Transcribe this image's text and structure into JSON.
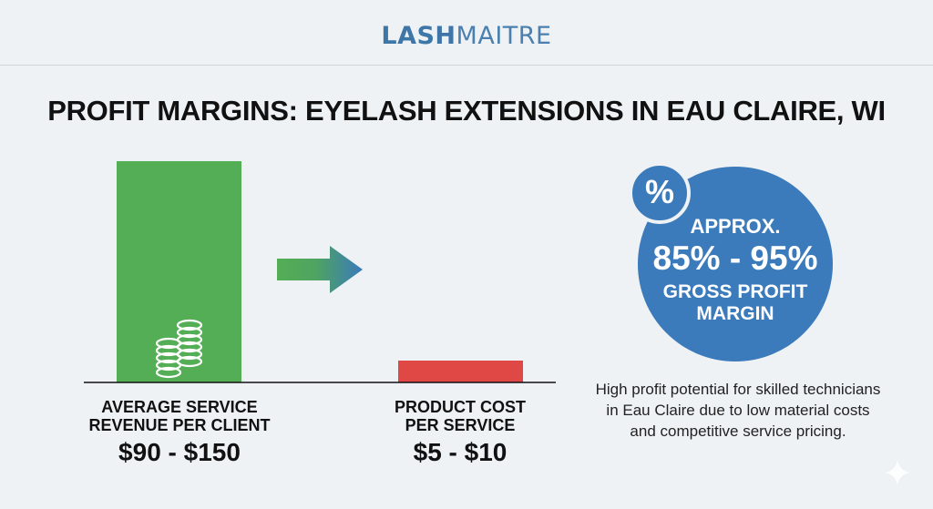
{
  "header": {
    "logo_bold": "LASH",
    "logo_light": "MAITRE"
  },
  "title": "PROFIT MARGINS: EYELASH EXTENSIONS IN EAU CLAIRE, WI",
  "chart_data": {
    "type": "bar",
    "title": "PROFIT MARGINS: EYELASH EXTENSIONS IN EAU CLAIRE, WI",
    "categories": [
      "AVERAGE SERVICE REVENUE PER CLIENT",
      "PRODUCT COST PER SERVICE"
    ],
    "category_lines": [
      [
        "AVERAGE SERVICE",
        "REVENUE PER CLIENT"
      ],
      [
        "PRODUCT COST",
        "PER SERVICE"
      ]
    ],
    "value_labels": [
      "$90 - $150",
      "$5 - $10"
    ],
    "ranges": [
      [
        90,
        150
      ],
      [
        5,
        10
      ]
    ],
    "colors": [
      "#54ae55",
      "#e04846"
    ],
    "grid": false,
    "axis": "baseline only"
  },
  "margin": {
    "badge": "%",
    "line1": "APPROX.",
    "line2": "85% - 95%",
    "line3": "GROSS PROFIT",
    "line4": "MARGIN",
    "color": "#3b7abb"
  },
  "note": "High profit potential for skilled technicians in Eau Claire due to low material costs and competitive service pricing.",
  "icons": [
    "coins-icon",
    "arrow-right-icon",
    "percent-icon",
    "sparkle-icon"
  ]
}
